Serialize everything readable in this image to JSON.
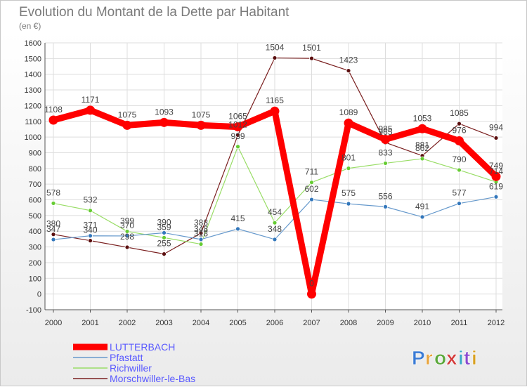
{
  "header": {
    "title": "Evolution du Montant de la Dette par Habitant",
    "subtitle": "(en €)"
  },
  "logo": {
    "text": "Proxiti",
    "letter_colors": [
      "#3a7bd5",
      "#e8a33a",
      "#5aa83a",
      "#d33a3a",
      "#3aa8c8",
      "#8a4ad0",
      "#d8a020"
    ]
  },
  "chart_data": {
    "type": "line",
    "title": "Evolution du Montant de la Dette par Habitant",
    "subtitle": "(en €)",
    "xlabel": "",
    "ylabel": "",
    "ylim": [
      -100,
      1600
    ],
    "yticks": [
      -100,
      0,
      100,
      200,
      300,
      400,
      500,
      600,
      700,
      800,
      900,
      1000,
      1100,
      1200,
      1300,
      1400,
      1500,
      1600
    ],
    "grid": true,
    "legend_position": "bottom-left",
    "categories": [
      "2000",
      "2001",
      "2002",
      "2003",
      "2004",
      "2005",
      "2006",
      "2007",
      "2008",
      "2009",
      "2010",
      "2011",
      "2012"
    ],
    "series": [
      {
        "name": "Morschwiller-le-Bas",
        "color": "#7a1f1f",
        "point_color": "#5a0e0e",
        "values": [
          380,
          340,
          298,
          255,
          388,
          1012,
          1504,
          1501,
          1423,
          965,
          881,
          1085,
          994
        ],
        "labels": [
          "380",
          "340",
          "298",
          "255",
          "388",
          "1012",
          "1504",
          "1501",
          "1423",
          "965",
          "881",
          "1085",
          "994"
        ]
      },
      {
        "name": "Richwiller",
        "color": "#99dd66",
        "point_color": "#66cc33",
        "values": [
          578,
          532,
          399,
          359,
          318,
          939,
          454,
          711,
          801,
          833,
          862,
          790,
          714
        ],
        "labels": [
          "578",
          "532",
          "399",
          "359",
          "318",
          "939",
          "454",
          "711",
          "801",
          "833",
          "862",
          "790",
          "714"
        ]
      },
      {
        "name": "Pfastatt",
        "color": "#6699cc",
        "point_color": "#3377bb",
        "values": [
          347,
          371,
          370,
          390,
          348,
          415,
          348,
          602,
          575,
          556,
          491,
          577,
          619
        ],
        "labels": [
          "347",
          "371",
          "370",
          "390",
          "348",
          "415",
          "348",
          "602",
          "575",
          "556",
          "491",
          "577",
          "619"
        ]
      },
      {
        "name": "LUTTERBACH",
        "color": "#ff0000",
        "point_color": "#ff0000",
        "values": [
          1108,
          1171,
          1075,
          1093,
          1075,
          1065,
          1165,
          0,
          1089,
          985,
          1053,
          976,
          749
        ],
        "labels": [
          "1108",
          "1171",
          "1075",
          "1093",
          "1075",
          "1065",
          "1165",
          "0",
          "1089",
          "985",
          "1053",
          "976",
          "749"
        ]
      }
    ],
    "legend_order": [
      "LUTTERBACH",
      "Pfastatt",
      "Richwiller",
      "Morschwiller-le-Bas"
    ]
  }
}
